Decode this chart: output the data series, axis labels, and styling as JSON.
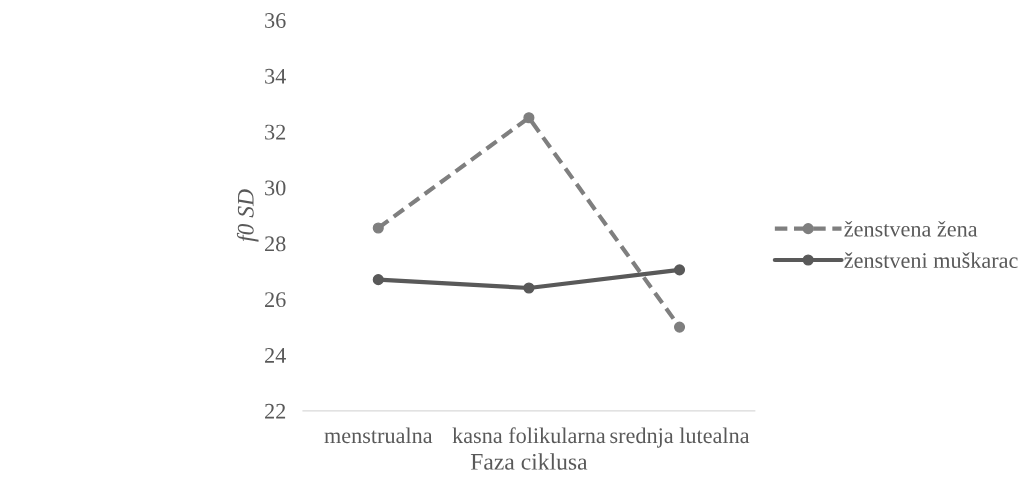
{
  "chart_data": {
    "type": "line",
    "xlabel": "Faza ciklusa",
    "ylabel": "f0 SD",
    "categories": [
      "menstrualna",
      "kasna folikularna",
      "srednja lutealna"
    ],
    "series": [
      {
        "name": "ženstvena žena",
        "color": "#7f7f7f",
        "line_style": "dashed",
        "values": [
          28.55,
          32.5,
          25.0
        ]
      },
      {
        "name": "ženstveni muškarac",
        "color": "#595959",
        "line_style": "solid",
        "values": [
          26.7,
          26.4,
          27.05
        ]
      }
    ],
    "ylim": [
      22,
      36
    ],
    "yticks": [
      22,
      24,
      26,
      28,
      30,
      32,
      34,
      36
    ],
    "grid": false,
    "legend": "right",
    "marker": "circle"
  }
}
